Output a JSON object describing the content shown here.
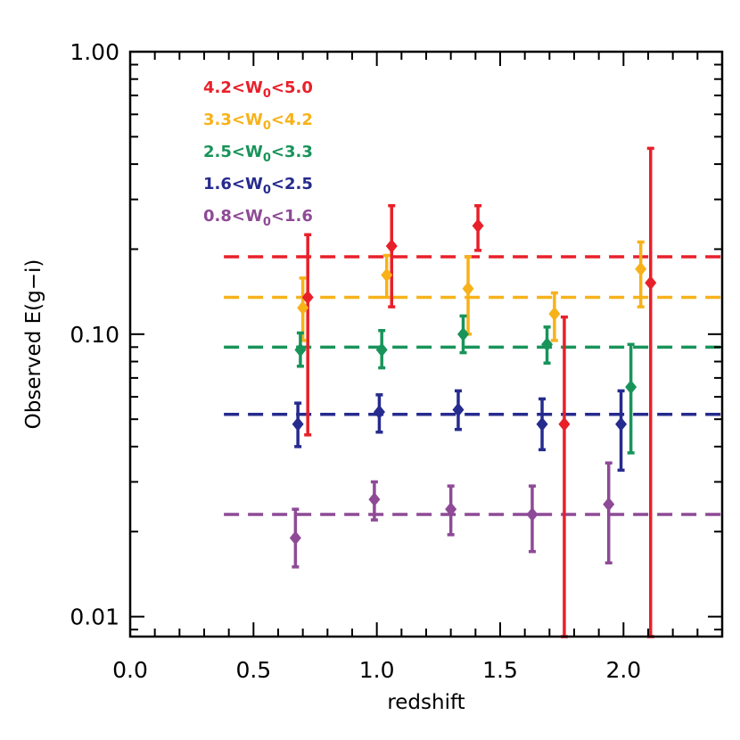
{
  "chart_data": {
    "type": "scatter",
    "title": "",
    "xlabel": "redshift",
    "ylabel": "Observed E(g−i)",
    "xlim": [
      0.0,
      2.4
    ],
    "ylim": [
      0.0085,
      1.0
    ],
    "yscale": "log",
    "x_ticks": [
      0.0,
      0.5,
      1.0,
      1.5,
      2.0
    ],
    "x_tick_labels": [
      "0.0",
      "0.5",
      "1.0",
      "1.5",
      "2.0"
    ],
    "y_ticks": [
      0.01,
      0.1,
      1.0
    ],
    "y_tick_labels": [
      "0.01",
      "0.10",
      "1.00"
    ],
    "grid": false,
    "legend_placement": "top-left",
    "series": [
      {
        "name": "4.2<W0<5.0",
        "label_parts": {
          "pre": "4.2<W",
          "sub": "0",
          "post": "<5.0"
        },
        "color": "#e8202a",
        "fit_level": 0.188,
        "fit_x_range": [
          0.38,
          2.4
        ],
        "points": [
          {
            "x": 0.72,
            "y": 0.135,
            "lo": 0.044,
            "hi": 0.225
          },
          {
            "x": 1.06,
            "y": 0.205,
            "lo": 0.125,
            "hi": 0.285
          },
          {
            "x": 1.41,
            "y": 0.242,
            "lo": 0.198,
            "hi": 0.285
          },
          {
            "x": 1.76,
            "y": 0.048,
            "lo": 0.0085,
            "hi": 0.115
          },
          {
            "x": 2.11,
            "y": 0.152,
            "lo": 0.0085,
            "hi": 0.455
          }
        ]
      },
      {
        "name": "3.3<W0<4.2",
        "label_parts": {
          "pre": "3.3<W",
          "sub": "0",
          "post": "<4.2"
        },
        "color": "#f7b21a",
        "fit_level": 0.135,
        "fit_x_range": [
          0.38,
          2.4
        ],
        "points": [
          {
            "x": 0.7,
            "y": 0.124,
            "lo": 0.095,
            "hi": 0.158
          },
          {
            "x": 1.04,
            "y": 0.162,
            "lo": 0.135,
            "hi": 0.19
          },
          {
            "x": 1.37,
            "y": 0.145,
            "lo": 0.1,
            "hi": 0.188
          },
          {
            "x": 1.72,
            "y": 0.118,
            "lo": 0.095,
            "hi": 0.14
          },
          {
            "x": 2.07,
            "y": 0.17,
            "lo": 0.125,
            "hi": 0.212
          }
        ]
      },
      {
        "name": "2.5<W0<3.3",
        "label_parts": {
          "pre": "2.5<W",
          "sub": "0",
          "post": "<3.3"
        },
        "color": "#18945a",
        "fit_level": 0.09,
        "fit_x_range": [
          0.38,
          2.4
        ],
        "points": [
          {
            "x": 0.69,
            "y": 0.088,
            "lo": 0.077,
            "hi": 0.101
          },
          {
            "x": 1.02,
            "y": 0.088,
            "lo": 0.076,
            "hi": 0.103
          },
          {
            "x": 1.35,
            "y": 0.1,
            "lo": 0.086,
            "hi": 0.116
          },
          {
            "x": 1.69,
            "y": 0.092,
            "lo": 0.079,
            "hi": 0.106
          },
          {
            "x": 2.03,
            "y": 0.065,
            "lo": 0.038,
            "hi": 0.092
          }
        ]
      },
      {
        "name": "1.6<W0<2.5",
        "label_parts": {
          "pre": "1.6<W",
          "sub": "0",
          "post": "<2.5"
        },
        "color": "#262b8e",
        "fit_level": 0.052,
        "fit_x_range": [
          0.38,
          2.4
        ],
        "points": [
          {
            "x": 0.68,
            "y": 0.048,
            "lo": 0.04,
            "hi": 0.057
          },
          {
            "x": 1.01,
            "y": 0.053,
            "lo": 0.045,
            "hi": 0.061
          },
          {
            "x": 1.33,
            "y": 0.054,
            "lo": 0.046,
            "hi": 0.063
          },
          {
            "x": 1.67,
            "y": 0.048,
            "lo": 0.039,
            "hi": 0.059
          },
          {
            "x": 1.99,
            "y": 0.048,
            "lo": 0.033,
            "hi": 0.063
          }
        ]
      },
      {
        "name": "0.8<W0<1.6",
        "label_parts": {
          "pre": "0.8<W",
          "sub": "0",
          "post": "<1.6"
        },
        "color": "#8e4a96",
        "fit_level": 0.023,
        "fit_x_range": [
          0.38,
          2.4
        ],
        "points": [
          {
            "x": 0.67,
            "y": 0.019,
            "lo": 0.015,
            "hi": 0.024
          },
          {
            "x": 0.99,
            "y": 0.026,
            "lo": 0.022,
            "hi": 0.03
          },
          {
            "x": 1.3,
            "y": 0.024,
            "lo": 0.0195,
            "hi": 0.029
          },
          {
            "x": 1.63,
            "y": 0.023,
            "lo": 0.017,
            "hi": 0.029
          },
          {
            "x": 1.94,
            "y": 0.025,
            "lo": 0.0155,
            "hi": 0.035
          }
        ]
      }
    ]
  }
}
